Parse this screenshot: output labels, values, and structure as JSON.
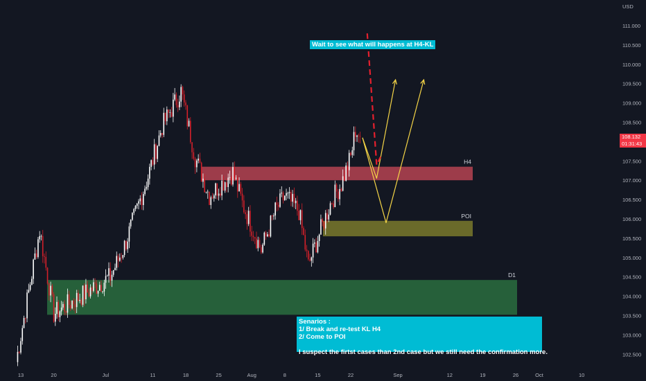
{
  "chart_data": {
    "type": "candlestick",
    "currency_label": "USD",
    "y_ticks": [
      111.0,
      110.5,
      110.0,
      109.5,
      109.0,
      108.5,
      108.0,
      107.5,
      107.0,
      106.5,
      106.0,
      105.5,
      105.0,
      104.5,
      104.0,
      103.5,
      103.0,
      102.5
    ],
    "x_ticks": [
      "13",
      "20",
      "Jul",
      "11",
      "18",
      "25",
      "Aug",
      "8",
      "15",
      "22",
      "Sep",
      "12",
      "19",
      "26",
      "Oct",
      "10"
    ],
    "current_price": "108.132",
    "countdown": "01:31:43",
    "zones": [
      {
        "label": "H4",
        "y_low": 107.0,
        "y_high": 107.35,
        "color": "#d24b5a"
      },
      {
        "label": "POI",
        "y_low": 105.55,
        "y_high": 105.95,
        "color": "#8c8a2e"
      },
      {
        "label": "D1",
        "y_low": 103.52,
        "y_high": 104.42,
        "color": "#2e7d44"
      }
    ],
    "key_points": [
      {
        "date": "Jun 12",
        "price": 102.3
      },
      {
        "date": "Jun 17",
        "price": 105.7
      },
      {
        "date": "Jun 20",
        "price": 103.55
      },
      {
        "date": "Jul 2",
        "price": 104.5
      },
      {
        "date": "Jul 5",
        "price": 105.3
      },
      {
        "date": "Jul 10",
        "price": 107.1
      },
      {
        "date": "Jul 13",
        "price": 108.4
      },
      {
        "date": "Jul 17",
        "price": 109.3
      },
      {
        "date": "Jul 20",
        "price": 107.6
      },
      {
        "date": "Jul 23",
        "price": 106.6
      },
      {
        "date": "Jul 28",
        "price": 107.2
      },
      {
        "date": "Jul 30",
        "price": 106.4
      },
      {
        "date": "Aug 1",
        "price": 105.8
      },
      {
        "date": "Aug 3",
        "price": 105.2
      },
      {
        "date": "Aug 6",
        "price": 106.2
      },
      {
        "date": "Aug 8",
        "price": 106.6
      },
      {
        "date": "Aug 11",
        "price": 106.2
      },
      {
        "date": "Aug 13",
        "price": 104.8
      },
      {
        "date": "Aug 15",
        "price": 105.5
      },
      {
        "date": "Aug 18",
        "price": 106.5
      },
      {
        "date": "Aug 20",
        "price": 106.9
      },
      {
        "date": "Aug 22",
        "price": 107.6
      },
      {
        "date": "Aug 23",
        "price": 108.3
      },
      {
        "date": "Aug 24",
        "price": 108.13
      }
    ],
    "projections": [
      {
        "style": "yellow",
        "points": [
          {
            "date": "Aug 24",
            "price": 108.1
          },
          {
            "date": "Aug 27",
            "price": 107.05
          },
          {
            "date": "Aug 31",
            "price": 109.6
          }
        ]
      },
      {
        "style": "yellow",
        "points": [
          {
            "date": "Aug 24",
            "price": 108.1
          },
          {
            "date": "Aug 29",
            "price": 105.9
          },
          {
            "date": "Sep 6",
            "price": 109.6
          }
        ]
      },
      {
        "style": "red-dashed",
        "points": [
          {
            "date": "Aug 25",
            "price": 110.8
          },
          {
            "date": "Aug 27",
            "price": 107.4
          },
          {
            "date": "Aug 28",
            "price": 107.65
          }
        ]
      }
    ]
  },
  "annotations": {
    "top_note": "Wait to see what will happens at H4-KL",
    "bottom_note_lines": [
      "Senarios :",
      "1/ Break and re-test KL H4",
      "2/ Come to POI",
      "",
      "I suspect the firtst cases than 2nd case but we still need the confirmation more."
    ]
  },
  "colors": {
    "background": "#131722",
    "up_candle": "#ffffff",
    "down_candle": "#d3202a",
    "axis_text": "#b2b5be",
    "note_bg": "#00bcd4",
    "projection_yellow": "#f5d547",
    "projection_red": "#e5202e",
    "price_badge": "#f23645"
  }
}
